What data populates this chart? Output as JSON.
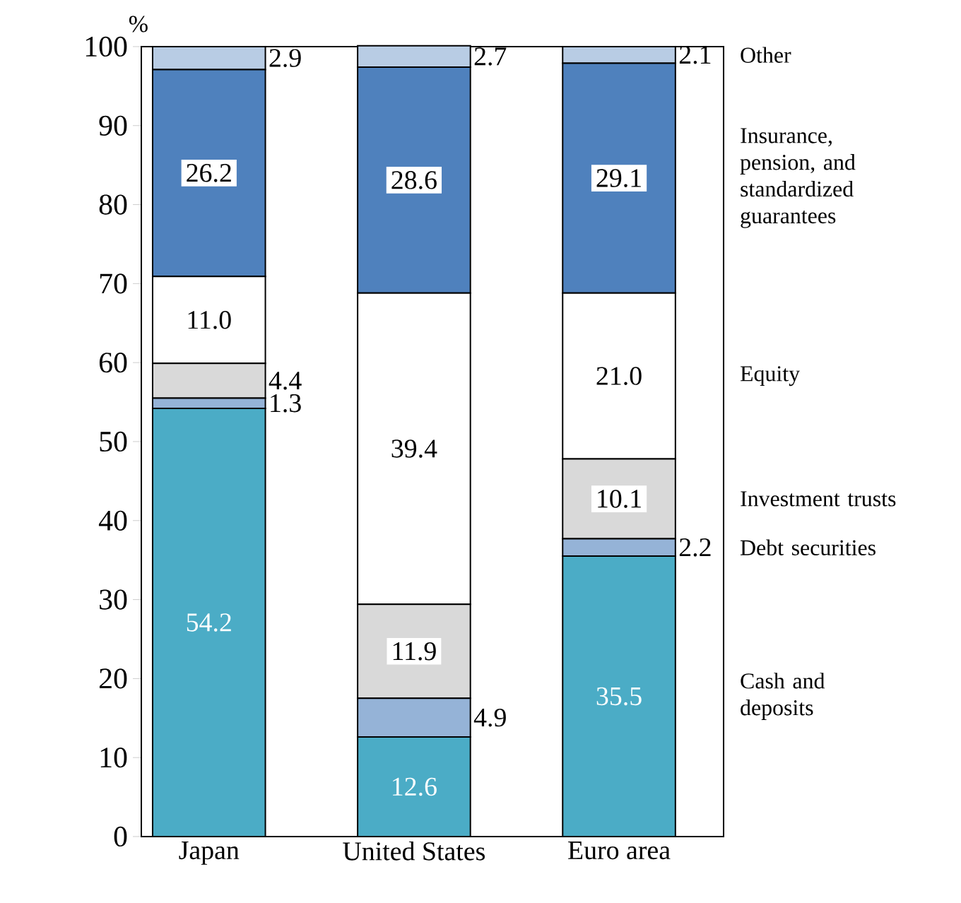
{
  "chart_data": {
    "type": "bar",
    "stacked": true,
    "ylabel": "%",
    "categories": [
      "Japan",
      "United States",
      "Euro area"
    ],
    "series": [
      {
        "name": "Cash and deposits",
        "color": "#4bacc6",
        "values": [
          54.2,
          12.6,
          35.5
        ],
        "value_labels": [
          "54.2",
          "12.6",
          "35.5"
        ]
      },
      {
        "name": "Debt securities",
        "color": "#95b3d7",
        "values": [
          1.3,
          4.9,
          2.2
        ],
        "value_labels": [
          "1.3",
          "4.9",
          "2.2"
        ]
      },
      {
        "name": "Investment trusts",
        "color": "#d9d9d9",
        "values": [
          4.4,
          11.9,
          10.1
        ],
        "value_labels": [
          "4.4",
          "11.9",
          "10.1"
        ]
      },
      {
        "name": "Equity",
        "color": "#ffffff",
        "values": [
          11.0,
          39.4,
          21.0
        ],
        "value_labels": [
          "11.0",
          "39.4",
          "21.0"
        ]
      },
      {
        "name": "Insurance, pension, and standardized guarantees",
        "color": "#4f81bd",
        "values": [
          26.2,
          28.6,
          29.1
        ],
        "value_labels": [
          "26.2",
          "28.6",
          "29.1"
        ]
      },
      {
        "name": "Other",
        "color": "#b8cce4",
        "values": [
          2.9,
          2.7,
          2.1
        ],
        "value_labels": [
          "2.9",
          "2.7",
          "2.1"
        ]
      }
    ],
    "ylim": [
      0,
      100
    ],
    "yticks": [
      0,
      10,
      20,
      30,
      40,
      50,
      60,
      70,
      80,
      90,
      100
    ],
    "grid": false
  }
}
